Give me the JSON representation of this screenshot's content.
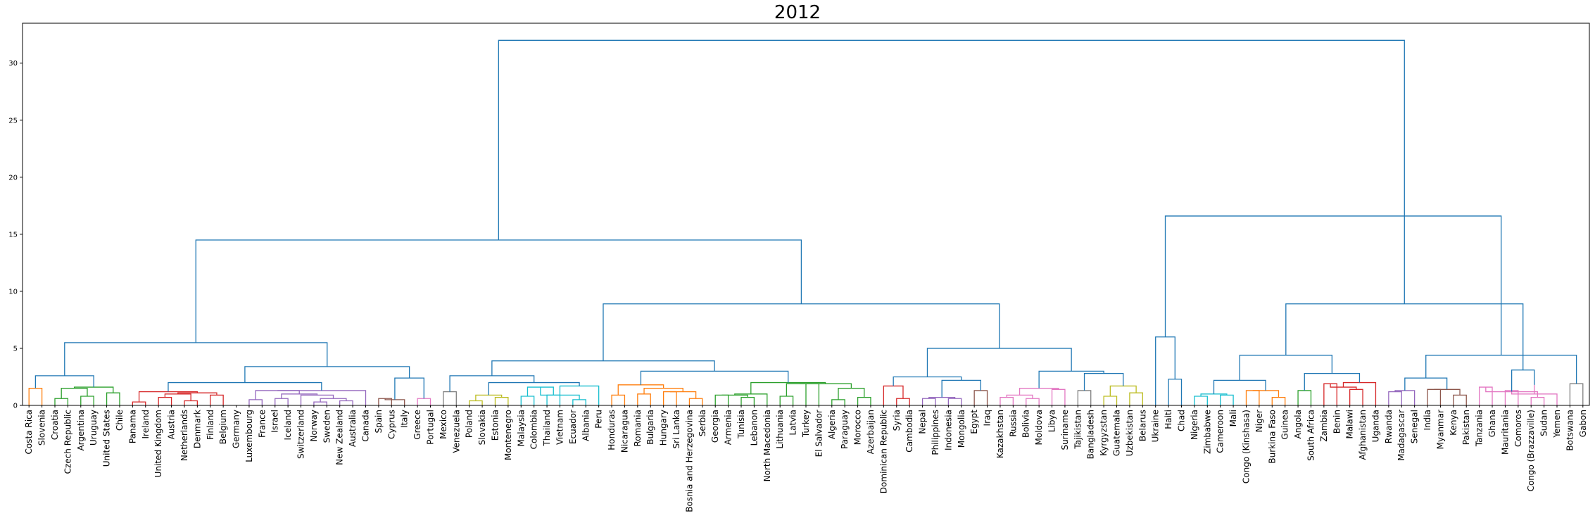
{
  "chart_data": {
    "type": "dendrogram",
    "title": "2012",
    "xlabel": "",
    "ylabel": "",
    "ylim": [
      0,
      33.5
    ],
    "yticks": [
      0,
      5,
      10,
      15,
      20,
      25,
      30
    ],
    "grid": false,
    "leaves": [
      "Costa Rica",
      "Slovenia",
      "Croatia",
      "Czech Republic",
      "Argentina",
      "Uruguay",
      "United States",
      "Chile",
      "Panama",
      "Ireland",
      "United Kingdom",
      "Austria",
      "Netherlands",
      "Denmark",
      "Finland",
      "Belgium",
      "Germany",
      "Luxembourg",
      "France",
      "Israel",
      "Iceland",
      "Switzerland",
      "Norway",
      "Sweden",
      "New Zealand",
      "Australia",
      "Canada",
      "Spain",
      "Cyprus",
      "Italy",
      "Greece",
      "Portugal",
      "Mexico",
      "Venezuela",
      "Poland",
      "Slovakia",
      "Estonia",
      "Montenegro",
      "Malaysia",
      "Colombia",
      "Thailand",
      "Vietnam",
      "Ecuador",
      "Albania",
      "Peru",
      "Honduras",
      "Nicaragua",
      "Romania",
      "Bulgaria",
      "Hungary",
      "Sri Lanka",
      "Bosnia and Herzegovina",
      "Serbia",
      "Georgia",
      "Armenia",
      "Tunisia",
      "Lebanon",
      "North Macedonia",
      "Lithuania",
      "Latvia",
      "Turkey",
      "El Salvador",
      "Algeria",
      "Paraguay",
      "Morocco",
      "Azerbaijan",
      "Dominican Republic",
      "Syria",
      "Cambodia",
      "Nepal",
      "Philippines",
      "Indonesia",
      "Mongolia",
      "Egypt",
      "Iraq",
      "Kazakhstan",
      "Russia",
      "Bolivia",
      "Moldova",
      "Libya",
      "Suriname",
      "Tajikistan",
      "Bangladesh",
      "Kyrgyzstan",
      "Guatemala",
      "Uzbekistan",
      "Belarus",
      "Ukraine",
      "Haiti",
      "Chad",
      "Nigeria",
      "Zimbabwe",
      "Cameroon",
      "Mali",
      "Congo (Kinshasa)",
      "Niger",
      "Burkina Faso",
      "Guinea",
      "Angola",
      "South Africa",
      "Zambia",
      "Benin",
      "Malawi",
      "Afghanistan",
      "Uganda",
      "Rwanda",
      "Madagascar",
      "Senegal",
      "India",
      "Myanmar",
      "Kenya",
      "Pakistan",
      "Tanzania",
      "Ghana",
      "Mauritania",
      "Comoros",
      "Congo (Brazzaville)",
      "Sudan",
      "Yemen",
      "Botswana",
      "Gabon"
    ],
    "merges": [
      [
        0,
        1,
        1.5,
        "#ff7f0e"
      ],
      [
        2,
        3,
        0.6,
        "#2ca02c"
      ],
      [
        4,
        5,
        0.8,
        "#2ca02c"
      ],
      [
        "m1",
        "m2",
        1.5,
        "#2ca02c"
      ],
      [
        6,
        7,
        1.1,
        "#2ca02c"
      ],
      [
        "m3",
        "m4",
        1.6,
        "#2ca02c"
      ],
      [
        "m0",
        "m5",
        2.6,
        "#1f77b4"
      ],
      [
        10,
        11,
        0.7,
        "#d62728"
      ],
      [
        12,
        13,
        0.4,
        "#d62728"
      ],
      [
        14,
        15,
        0.9,
        "#d62728"
      ],
      [
        8,
        9,
        0.3,
        "#d62728"
      ],
      [
        "m7",
        "m8",
        1.0,
        "#d62728"
      ],
      [
        "m11",
        "m9",
        1.1,
        "#d62728"
      ],
      [
        "m10",
        "m12",
        1.2,
        "#d62728"
      ],
      [
        17,
        18,
        0.5,
        "#9467bd"
      ],
      [
        19,
        20,
        0.6,
        "#9467bd"
      ],
      [
        22,
        23,
        0.3,
        "#9467bd"
      ],
      [
        24,
        25,
        0.4,
        "#9467bd"
      ],
      [
        "m16",
        "m17",
        0.6,
        "#9467bd"
      ],
      [
        21,
        "m18",
        0.9,
        "#9467bd"
      ],
      [
        "m15",
        "m19",
        1.0,
        "#9467bd"
      ],
      [
        "m14",
        "m20",
        1.3,
        "#9467bd"
      ],
      [
        "m21",
        26,
        1.3,
        "#9467bd"
      ],
      [
        "m13",
        "m22",
        2.0,
        "#1f77b4"
      ],
      [
        27,
        28,
        0.6,
        "#8c564b"
      ],
      [
        30,
        31,
        0.6,
        "#e377c2"
      ],
      [
        "m24",
        29,
        0.5,
        "#8c564b"
      ],
      [
        "m26",
        "m25",
        2.4,
        "#1f77b4"
      ],
      [
        "m23",
        "m27",
        3.4,
        "#1f77b4"
      ],
      [
        "m6",
        "m28",
        5.5,
        "#1f77b4"
      ],
      [
        32,
        33,
        1.2,
        "#7f7f7f"
      ],
      [
        34,
        35,
        0.4,
        "#bcbd22"
      ],
      [
        36,
        37,
        0.7,
        "#bcbd22"
      ],
      [
        "m31",
        "m32",
        0.9,
        "#bcbd22"
      ],
      [
        38,
        39,
        0.8,
        "#17becf"
      ],
      [
        40,
        41,
        0.9,
        "#17becf"
      ],
      [
        42,
        43,
        0.5,
        "#17becf"
      ],
      [
        "m34",
        "m35",
        1.6,
        "#17becf"
      ],
      [
        "m37",
        "m36",
        0.9,
        "#17becf"
      ],
      [
        "m38",
        44,
        1.7,
        "#17becf"
      ],
      [
        "m33",
        "m39",
        2.0,
        "#1f77b4"
      ],
      [
        "m30",
        "m40",
        2.6,
        "#1f77b4"
      ],
      [
        45,
        46,
        0.9,
        "#ff7f0e"
      ],
      [
        47,
        48,
        1.0,
        "#ff7f0e"
      ],
      [
        49,
        50,
        1.2,
        "#ff7f0e"
      ],
      [
        51,
        52,
        0.6,
        "#ff7f0e"
      ],
      [
        "m44",
        "m45",
        1.2,
        "#ff7f0e"
      ],
      [
        "m43",
        "m46",
        1.5,
        "#ff7f0e"
      ],
      [
        "m42",
        "m47",
        1.8,
        "#ff7f0e"
      ],
      [
        53,
        54,
        0.9,
        "#2ca02c"
      ],
      [
        55,
        56,
        0.7,
        "#2ca02c"
      ],
      [
        "m49",
        "m50",
        0.9,
        "#2ca02c"
      ],
      [
        "m51",
        57,
        1.0,
        "#2ca02c"
      ],
      [
        58,
        59,
        0.8,
        "#2ca02c"
      ],
      [
        60,
        61,
        1.9,
        "#2ca02c"
      ],
      [
        "m53",
        "m54",
        1.9,
        "#2ca02c"
      ],
      [
        62,
        63,
        0.5,
        "#2ca02c"
      ],
      [
        64,
        65,
        0.7,
        "#2ca02c"
      ],
      [
        "m56",
        "m57",
        1.5,
        "#2ca02c"
      ],
      [
        "m55",
        "m58",
        1.9,
        "#2ca02c"
      ],
      [
        "m52",
        "m59",
        2.0,
        "#2ca02c"
      ],
      [
        "m48",
        "m60",
        3.0,
        "#1f77b4"
      ],
      [
        "m41",
        "m61",
        3.9,
        "#1f77b4"
      ],
      [
        67,
        68,
        0.6,
        "#d62728"
      ],
      [
        66,
        "m63",
        1.7,
        "#d62728"
      ],
      [
        69,
        70,
        0.6,
        "#9467bd"
      ],
      [
        71,
        72,
        0.6,
        "#9467bd"
      ],
      [
        "m65",
        "m66",
        0.7,
        "#9467bd"
      ],
      [
        73,
        74,
        1.3,
        "#8c564b"
      ],
      [
        "m67",
        "m68",
        2.2,
        "#1f77b4"
      ],
      [
        "m64",
        "m69",
        2.5,
        "#1f77b4"
      ],
      [
        75,
        76,
        0.7,
        "#e377c2"
      ],
      [
        77,
        78,
        0.6,
        "#e377c2"
      ],
      [
        "m71",
        "m72",
        0.9,
        "#e377c2"
      ],
      [
        79,
        80,
        1.4,
        "#e377c2"
      ],
      [
        "m73",
        "m74",
        1.5,
        "#e377c2"
      ],
      [
        81,
        82,
        1.3,
        "#7f7f7f"
      ],
      [
        83,
        84,
        0.8,
        "#bcbd22"
      ],
      [
        85,
        86,
        1.1,
        "#bcbd22"
      ],
      [
        "m77",
        "m78",
        1.7,
        "#bcbd22"
      ],
      [
        "m76",
        "m79",
        2.8,
        "#1f77b4"
      ],
      [
        "m75",
        "m80",
        3.0,
        "#1f77b4"
      ],
      [
        "m70",
        "m81",
        5.0,
        "#1f77b4"
      ],
      [
        "m62",
        "m82",
        8.9,
        "#1f77b4"
      ],
      [
        "m29",
        "m83",
        14.5,
        "#1f77b4"
      ],
      [
        88,
        89,
        2.3,
        "#1f77b4"
      ],
      [
        87,
        "m85",
        6.0,
        "#1f77b4"
      ],
      [
        90,
        91,
        0.8,
        "#17becf"
      ],
      [
        92,
        93,
        0.9,
        "#17becf"
      ],
      [
        "m87",
        "m88",
        1.0,
        "#17becf"
      ],
      [
        94,
        95,
        1.3,
        "#ff7f0e"
      ],
      [
        96,
        97,
        0.7,
        "#ff7f0e"
      ],
      [
        "m90",
        "m91",
        1.3,
        "#ff7f0e"
      ],
      [
        "m89",
        "m92",
        2.2,
        "#1f77b4"
      ],
      [
        98,
        99,
        1.3,
        "#2ca02c"
      ],
      [
        100,
        101,
        1.9,
        "#d62728"
      ],
      [
        102,
        103,
        1.4,
        "#d62728"
      ],
      [
        "m95",
        "m96",
        1.6,
        "#d62728"
      ],
      [
        104,
        "m97",
        2.0,
        "#d62728"
      ],
      [
        "m94",
        "m98",
        2.8,
        "#1f77b4"
      ],
      [
        "m93",
        "m99",
        4.4,
        "#1f77b4"
      ],
      [
        105,
        106,
        1.2,
        "#9467bd"
      ],
      [
        "m101",
        107,
        1.3,
        "#9467bd"
      ],
      [
        108,
        109,
        1.4,
        "#8c564b"
      ],
      [
        110,
        111,
        0.9,
        "#8c564b"
      ],
      [
        "m103",
        "m104",
        1.4,
        "#8c564b"
      ],
      [
        "m102",
        "m105",
        2.4,
        "#1f77b4"
      ],
      [
        112,
        113,
        1.6,
        "#e377c2"
      ],
      [
        114,
        115,
        1.3,
        "#e377c2"
      ],
      [
        116,
        117,
        0.7,
        "#e377c2"
      ],
      [
        "m108",
        118,
        1.0,
        "#e377c2"
      ],
      [
        "m107",
        "m109",
        1.2,
        "#e377c2"
      ],
      [
        "m107b",
        "m110",
        1.8,
        "#e377c2"
      ],
      [
        119,
        120,
        1.9,
        "#7f7f7f"
      ],
      [
        "m111",
        "m112",
        3.1,
        "#1f77b4"
      ],
      [
        "m106",
        "m113",
        4.4,
        "#1f77b4"
      ],
      [
        "m100",
        "m114",
        8.9,
        "#1f77b4"
      ],
      [
        "m86",
        "m115",
        16.6,
        "#1f77b4"
      ],
      [
        "m84",
        "m116",
        32.0,
        "#1f77b4"
      ]
    ]
  }
}
